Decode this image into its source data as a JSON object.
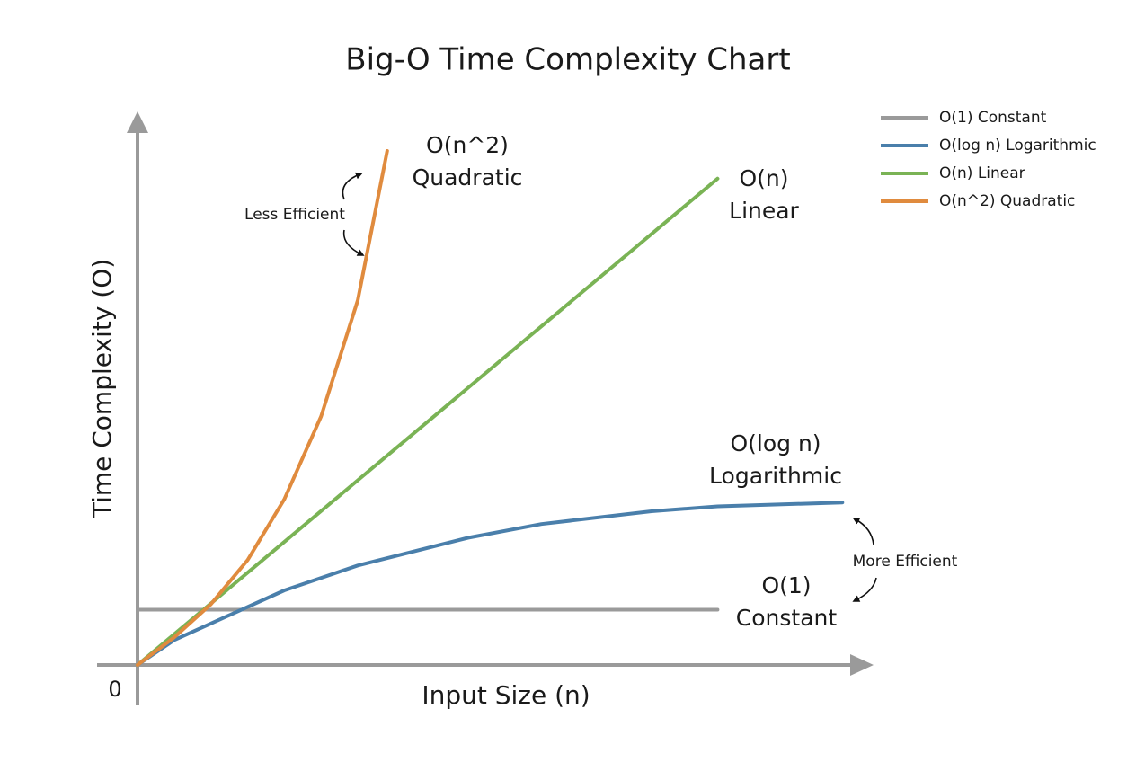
{
  "chart_data": {
    "type": "line",
    "title": "Big-O Time Complexity Chart",
    "x_label": "Input Size (n)",
    "y_label": "Time Complexity (O)",
    "origin_label": "0",
    "xlim": [
      0,
      100
    ],
    "ylim": [
      0,
      100
    ],
    "legend": "top-right",
    "series": [
      {
        "name": "O(1) Constant",
        "color": "#9a9a9a",
        "label": [
          "O(1)",
          "Constant"
        ],
        "x": [
          0,
          79
        ],
        "values": [
          10,
          10
        ]
      },
      {
        "name": "O(log n) Logarithmic",
        "color": "#4a7fab",
        "label": [
          "O(log n)",
          "Logarithmic"
        ],
        "x": [
          0,
          5,
          13,
          20,
          30,
          45,
          55,
          70,
          79,
          96
        ],
        "values": [
          0,
          4.5,
          9.3,
          13.5,
          18,
          23,
          25.5,
          27.8,
          28.7,
          29.4
        ]
      },
      {
        "name": "O(n) Linear",
        "color": "#7ab355",
        "label": [
          "O(n)",
          "Linear"
        ],
        "x": [
          0,
          79
        ],
        "values": [
          0,
          88
        ]
      },
      {
        "name": "O(n^2) Quadratic",
        "color": "#e08b3e",
        "label": [
          "O(n^2)",
          "Quadratic"
        ],
        "x": [
          0,
          5,
          10,
          15,
          20,
          25,
          30,
          34
        ],
        "values": [
          0,
          5,
          11,
          19,
          30,
          45,
          66,
          93
        ]
      }
    ],
    "annotations": [
      "Less Efficient",
      "More Efficient"
    ]
  }
}
